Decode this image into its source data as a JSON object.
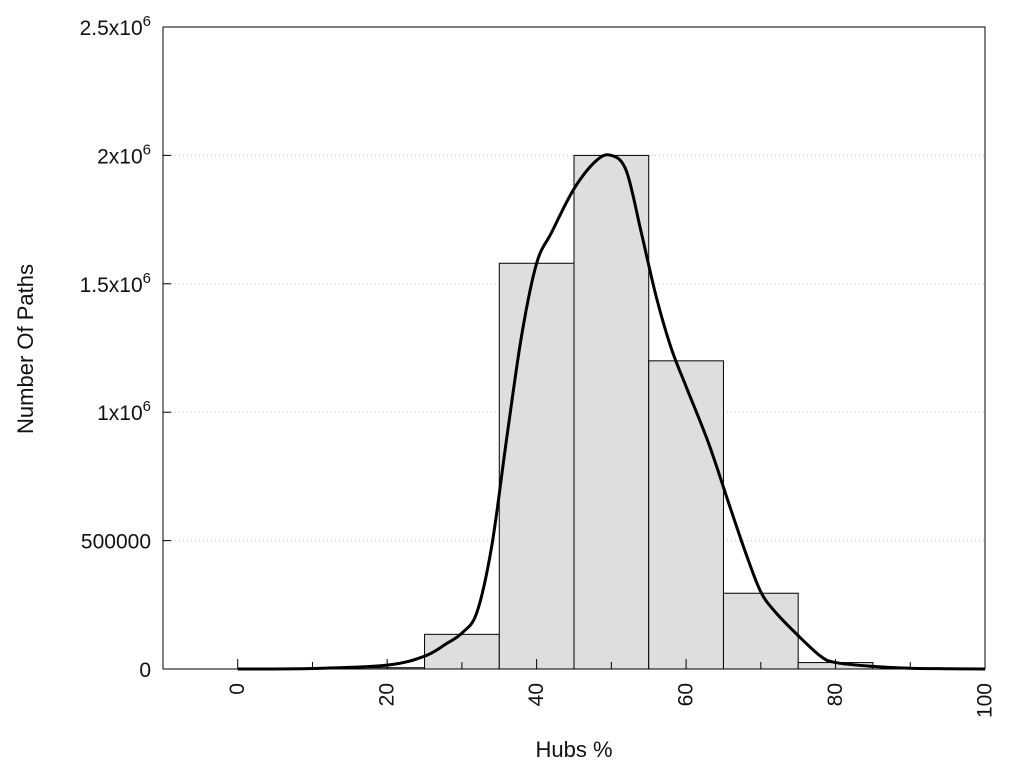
{
  "chart_data": {
    "type": "bar",
    "xlabel": "Hubs %",
    "ylabel": "Number Of Paths",
    "xlim": [
      -10,
      100
    ],
    "ylim": [
      0,
      2500000
    ],
    "x_ticks": [
      0,
      20,
      40,
      60,
      80,
      100
    ],
    "y_ticks": [
      {
        "value": 0,
        "mantissa": "0",
        "exp": ""
      },
      {
        "value": 500000,
        "mantissa": "500000",
        "exp": ""
      },
      {
        "value": 1000000,
        "mantissa": "1x10",
        "exp": "6"
      },
      {
        "value": 1500000,
        "mantissa": "1.5x10",
        "exp": "6"
      },
      {
        "value": 2000000,
        "mantissa": "2x10",
        "exp": "6"
      },
      {
        "value": 2500000,
        "mantissa": "2.5x10",
        "exp": "6"
      }
    ],
    "grid": "horizontal-dotted",
    "bin_width": 10,
    "bars": [
      {
        "center": 0,
        "value": 0
      },
      {
        "center": 10,
        "value": 0
      },
      {
        "center": 20,
        "value": 5000
      },
      {
        "center": 30,
        "value": 135000
      },
      {
        "center": 40,
        "value": 1580000
      },
      {
        "center": 50,
        "value": 2000000
      },
      {
        "center": 60,
        "value": 1200000
      },
      {
        "center": 70,
        "value": 295000
      },
      {
        "center": 80,
        "value": 25000
      },
      {
        "center": 90,
        "value": 0
      }
    ],
    "curve": {
      "x": [
        0,
        10,
        20,
        25,
        28,
        30,
        32,
        34,
        36,
        38,
        40,
        42,
        45,
        48,
        50,
        52,
        54,
        56,
        58,
        60,
        63,
        66,
        68,
        70,
        72,
        75,
        78,
        80,
        85,
        90,
        95,
        100
      ],
      "y": [
        0,
        2000,
        15000,
        50000,
        100000,
        140000,
        220000,
        480000,
        900000,
        1300000,
        1580000,
        1700000,
        1870000,
        1980000,
        2000000,
        1940000,
        1700000,
        1450000,
        1250000,
        1100000,
        880000,
        620000,
        450000,
        300000,
        220000,
        130000,
        50000,
        25000,
        10000,
        3000,
        1000,
        0
      ]
    }
  }
}
